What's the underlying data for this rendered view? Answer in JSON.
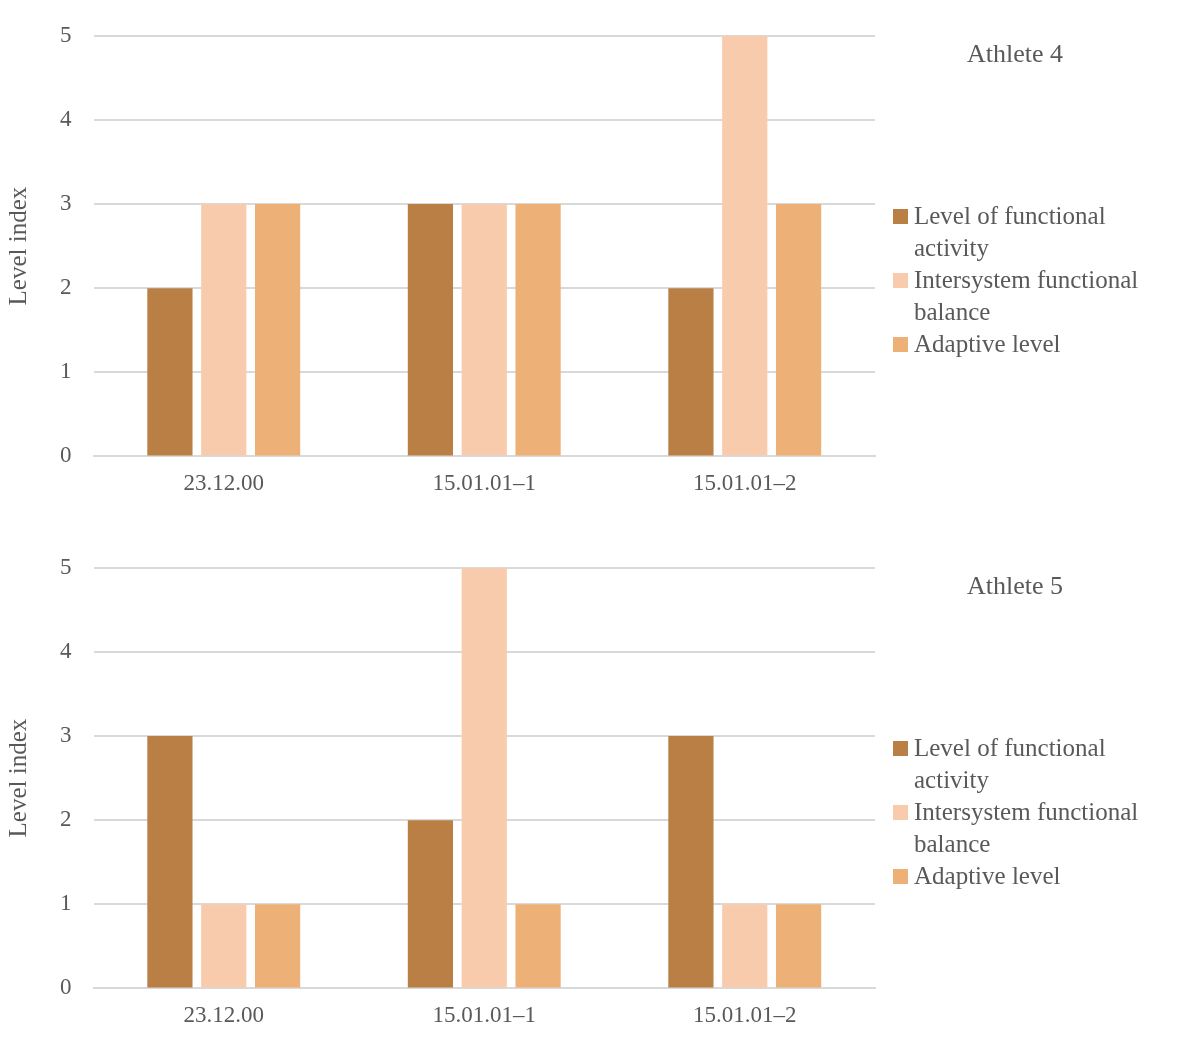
{
  "chart_data": [
    {
      "type": "bar",
      "annotations": [
        "Athlete 4"
      ],
      "ylabel": "Level index",
      "categories": [
        "23.12.00",
        "15.01.01–1",
        "15.01.01–2"
      ],
      "series": [
        {
          "name": "Level of functional activity",
          "color": "#b97f45",
          "values": [
            2,
            3,
            2
          ]
        },
        {
          "name": "Intersystem functional balance",
          "color": "#f8cbad",
          "values": [
            3,
            3,
            5
          ]
        },
        {
          "name": "Adaptive level",
          "color": "#edb077",
          "values": [
            3,
            3,
            3
          ]
        }
      ],
      "ylim": [
        0,
        5
      ],
      "yticks": [
        0,
        1,
        2,
        3,
        4,
        5
      ],
      "grid": "y",
      "legend": "right"
    },
    {
      "type": "bar",
      "annotations": [
        "Athlete 5"
      ],
      "ylabel": "Level index",
      "categories": [
        "23.12.00",
        "15.01.01–1",
        "15.01.01–2"
      ],
      "series": [
        {
          "name": "Level of functional activity",
          "color": "#b97f45",
          "values": [
            3,
            2,
            3
          ]
        },
        {
          "name": "Intersystem functional balance",
          "color": "#f8cbad",
          "values": [
            1,
            5,
            1
          ]
        },
        {
          "name": "Adaptive level",
          "color": "#edb077",
          "values": [
            1,
            1,
            1
          ]
        }
      ],
      "ylim": [
        0,
        5
      ],
      "yticks": [
        0,
        1,
        2,
        3,
        4,
        5
      ],
      "grid": "y",
      "legend": "right"
    }
  ]
}
